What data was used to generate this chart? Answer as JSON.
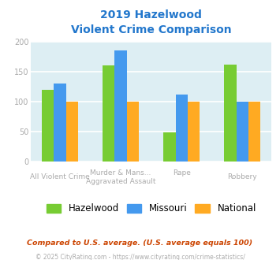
{
  "title_line1": "2019 Hazelwood",
  "title_line2": "Violent Crime Comparison",
  "title_color": "#2277cc",
  "cat_labels_top": [
    "",
    "Murder & Mans...",
    "Rape",
    ""
  ],
  "cat_labels_bot": [
    "All Violent Crime",
    "Aggravated Assault",
    "",
    "Robbery"
  ],
  "series": {
    "Hazelwood": [
      119,
      160,
      48,
      161
    ],
    "Missouri": [
      130,
      185,
      112,
      100
    ],
    "National": [
      100,
      100,
      100,
      100
    ]
  },
  "colors": {
    "Hazelwood": "#77cc33",
    "Missouri": "#4499ee",
    "National": "#ffaa22"
  },
  "ylim": [
    0,
    200
  ],
  "yticks": [
    0,
    50,
    100,
    150,
    200
  ],
  "bg_color": "#ddeef3",
  "grid_color": "#ffffff",
  "footnote1": "Compared to U.S. average. (U.S. average equals 100)",
  "footnote2": "© 2025 CityRating.com - https://www.cityrating.com/crime-statistics/",
  "footnote1_color": "#cc4400",
  "footnote2_color": "#aaaaaa",
  "tick_color": "#aaaaaa"
}
